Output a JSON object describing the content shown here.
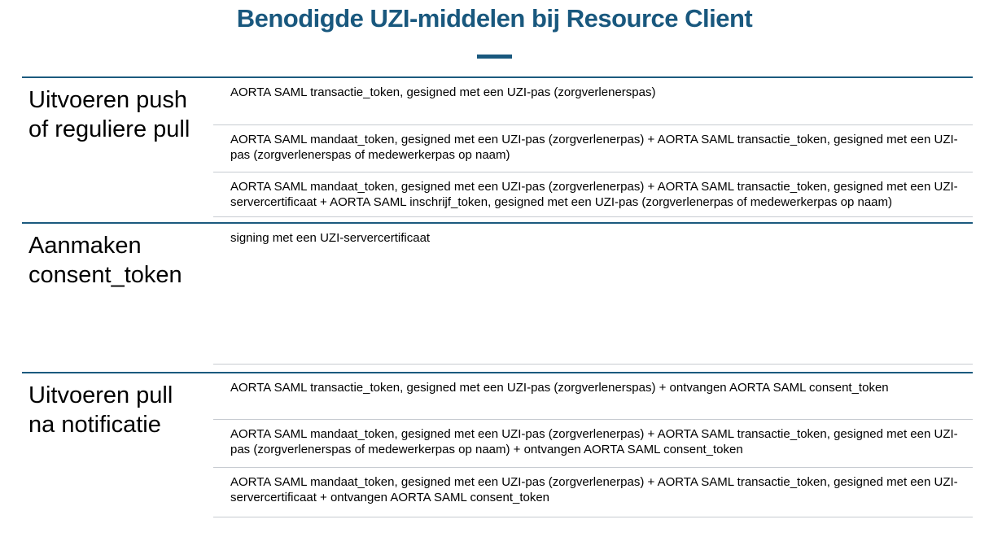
{
  "title": "Benodigde UZI-middelen bij Resource Client",
  "colors": {
    "accent": "#19587E",
    "section_border": "#1B5A7E",
    "row_divider": "#C7CBD1"
  },
  "sections": [
    {
      "header": "Uitvoeren push of reguliere pull",
      "rows": [
        "AORTA SAML transactie_token, gesigned met een UZI-pas (zorgverlenerspas)",
        "AORTA SAML mandaat_token, gesigned met een UZI-pas (zorgverlenerpas) + AORTA SAML transactie_token, gesigned met een UZI-pas (zorgverlenerspas of medewerkerpas op naam)",
        "AORTA SAML mandaat_token, gesigned met een UZI-pas (zorgverlenerpas) + AORTA SAML transactie_token, gesigned met een UZI-servercertificaat + AORTA SAML inschrijf_token, gesigned met een UZI-pas (zorgverlenerpas of medewerkerpas op naam)"
      ]
    },
    {
      "header": "Aanmaken consent_token",
      "rows": [
        "signing met een UZI-servercertificaat"
      ]
    },
    {
      "header": "Uitvoeren pull na notificatie",
      "rows": [
        "AORTA SAML transactie_token, gesigned met een UZI-pas (zorgverlenerspas) + ontvangen AORTA SAML consent_token",
        "AORTA SAML mandaat_token, gesigned met een UZI-pas (zorgverlenerpas) + AORTA SAML transactie_token, gesigned met een UZI-pas (zorgverlenerspas of medewerkerpas op naam) + ontvangen AORTA SAML consent_token",
        "AORTA SAML mandaat_token, gesigned met een UZI-pas (zorgverlenerpas) + AORTA SAML transactie_token, gesigned met een UZI-servercertificaat + ontvangen AORTA SAML consent_token"
      ]
    }
  ]
}
